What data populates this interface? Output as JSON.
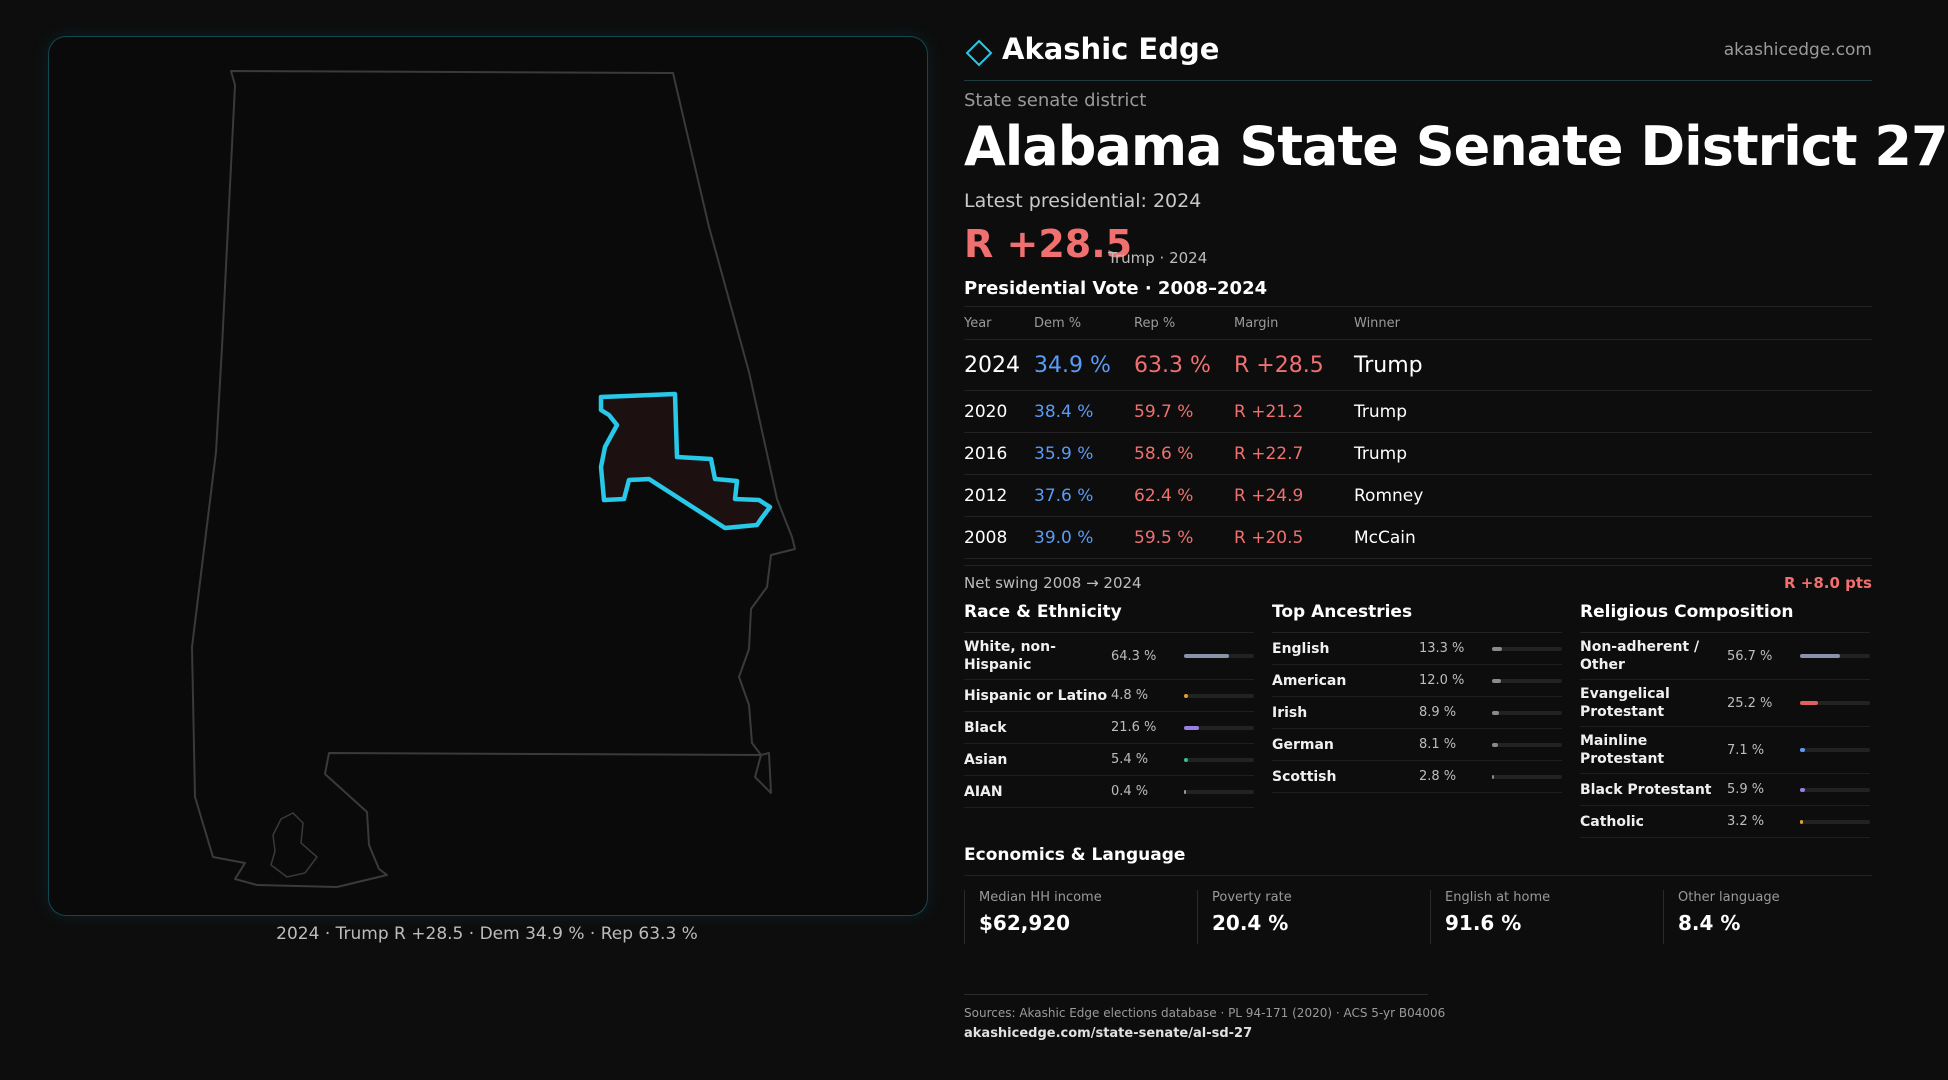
{
  "brand": {
    "name": "Akashic Edge",
    "url": "akashicedge.com"
  },
  "kicker": "State senate district",
  "title": "Alabama State Senate District 27",
  "latest": "Latest presidential: 2024",
  "headline_margin": "R +28.5",
  "headline_note": "Trump · 2024",
  "presidential_title": "Presidential Vote · 2008–2024",
  "table": {
    "headers": [
      "Year",
      "Dem %",
      "Rep %",
      "Margin",
      "Winner"
    ],
    "rows": [
      {
        "year": "2024",
        "dem": "34.9 %",
        "rep": "63.3 %",
        "margin": "R +28.5",
        "winner": "Trump"
      },
      {
        "year": "2020",
        "dem": "38.4 %",
        "rep": "59.7 %",
        "margin": "R +21.2",
        "winner": "Trump"
      },
      {
        "year": "2016",
        "dem": "35.9 %",
        "rep": "58.6 %",
        "margin": "R +22.7",
        "winner": "Trump"
      },
      {
        "year": "2012",
        "dem": "37.6 %",
        "rep": "62.4 %",
        "margin": "R +24.9",
        "winner": "Romney"
      },
      {
        "year": "2008",
        "dem": "39.0 %",
        "rep": "59.5 %",
        "margin": "R +20.5",
        "winner": "McCain"
      }
    ]
  },
  "swing": {
    "label": "Net swing 2008 → 2024",
    "value": "R +8.0 pts"
  },
  "race": {
    "title": "Race & Ethnicity",
    "items": [
      {
        "label": "White, non-Hispanic",
        "pct": "64.3 %",
        "value": 64.3,
        "color": "#8a94a8"
      },
      {
        "label": "Hispanic or Latino",
        "pct": "4.8 %",
        "value": 4.8,
        "color": "#e0a030"
      },
      {
        "label": "Black",
        "pct": "21.6 %",
        "value": 21.6,
        "color": "#9a7ee0"
      },
      {
        "label": "Asian",
        "pct": "5.4 %",
        "value": 5.4,
        "color": "#30c090"
      },
      {
        "label": "AIAN",
        "pct": "0.4 %",
        "value": 0.4,
        "color": "#999999"
      }
    ]
  },
  "ancestry": {
    "title": "Top Ancestries",
    "items": [
      {
        "label": "English",
        "pct": "13.3 %",
        "value": 13.3,
        "color": "#8a8a8a"
      },
      {
        "label": "American",
        "pct": "12.0 %",
        "value": 12.0,
        "color": "#8a8a8a"
      },
      {
        "label": "Irish",
        "pct": "8.9 %",
        "value": 8.9,
        "color": "#8a8a8a"
      },
      {
        "label": "German",
        "pct": "8.1 %",
        "value": 8.1,
        "color": "#8a8a8a"
      },
      {
        "label": "Scottish",
        "pct": "2.8 %",
        "value": 2.8,
        "color": "#8a8a8a"
      }
    ]
  },
  "religion": {
    "title": "Religious Composition",
    "items": [
      {
        "label": "Non-adherent / Other",
        "pct": "56.7 %",
        "value": 56.7,
        "color": "#8a94a8"
      },
      {
        "label": "Evangelical Protestant",
        "pct": "25.2 %",
        "value": 25.2,
        "color": "#e06060"
      },
      {
        "label": "Mainline Protestant",
        "pct": "7.1 %",
        "value": 7.1,
        "color": "#5b9bf5"
      },
      {
        "label": "Black Protestant",
        "pct": "5.9 %",
        "value": 5.9,
        "color": "#9a7ee0"
      },
      {
        "label": "Catholic",
        "pct": "3.2 %",
        "value": 3.2,
        "color": "#e0a030"
      }
    ]
  },
  "economics": {
    "title": "Economics & Language",
    "items": [
      {
        "label": "Median HH income",
        "value": "$62,920"
      },
      {
        "label": "Poverty rate",
        "value": "20.4 %"
      },
      {
        "label": "English at home",
        "value": "91.6 %"
      },
      {
        "label": "Other language",
        "value": "8.4 %"
      }
    ]
  },
  "map_caption": "2024 · Trump R +28.5 · Dem 34.9 % · Rep 63.3 %",
  "footer": {
    "sources": "Sources: Akashic Edge elections database · PL 94-171 (2020) · ACS 5-yr B04006",
    "url": "akashicedge.com/state-senate/al-sd-27"
  },
  "colors": {
    "accent": "#28c8e8",
    "rep": "#f07070",
    "dem": "#5b9bf5"
  }
}
